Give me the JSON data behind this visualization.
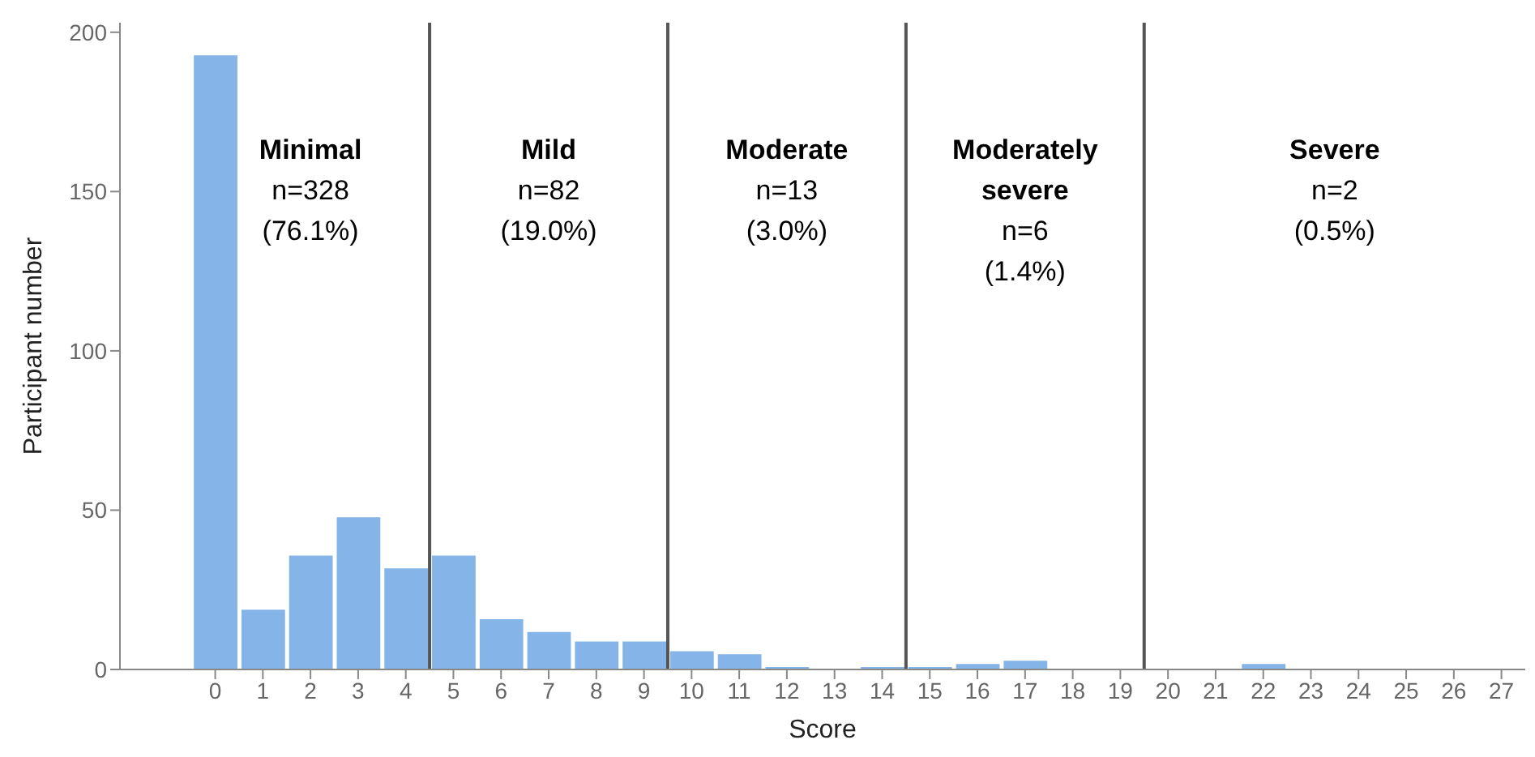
{
  "chart_data": {
    "type": "histogram",
    "xlabel": "Score",
    "ylabel": "Participant number",
    "bins": [
      -0.5,
      0.5,
      1.5,
      2.5,
      3.5,
      4.5,
      5.5,
      6.5,
      7.5,
      8.5,
      9.5,
      10.5,
      11.5,
      12.5,
      13.5,
      14.5,
      15.5,
      16.5,
      17.5,
      18.5,
      19.5,
      20.5,
      21.5,
      22.5,
      23.5,
      24.5,
      25.5,
      26.5,
      27.5
    ],
    "values": [
      193,
      19,
      36,
      48,
      32,
      36,
      16,
      12,
      9,
      9,
      6,
      5,
      1,
      0,
      1,
      1,
      2,
      3,
      0,
      0,
      0,
      0,
      2,
      0,
      0,
      0,
      0,
      0
    ],
    "color": "#85b5e8",
    "xlim": [
      -2,
      27.5
    ],
    "xticks": [
      0,
      1,
      2,
      3,
      4,
      5,
      6,
      7,
      8,
      9,
      10,
      11,
      12,
      13,
      14,
      15,
      16,
      17,
      18,
      19,
      20,
      21,
      22,
      23,
      24,
      25,
      26,
      27
    ],
    "ylim": [
      0,
      203
    ],
    "yticks": [
      0,
      50,
      100,
      150,
      200
    ],
    "grid": false,
    "ref_lines": [
      {
        "axis": "x",
        "value": 4.5,
        "color": "#555555"
      },
      {
        "axis": "x",
        "value": 9.5,
        "color": "#555555"
      },
      {
        "axis": "x",
        "value": 14.5,
        "color": "#555555"
      },
      {
        "axis": "x",
        "value": 19.5,
        "color": "#555555"
      }
    ],
    "annotations": [
      "Minimal\nn=328\n(76.1%)",
      "Mild\nn=82\n(19.0%)",
      "Moderate\nn=13\n(3.0%)",
      "Moderately\nsevere\nn=6\n(1.4%)",
      "Severe\nn=2\n(0.5%)"
    ]
  }
}
